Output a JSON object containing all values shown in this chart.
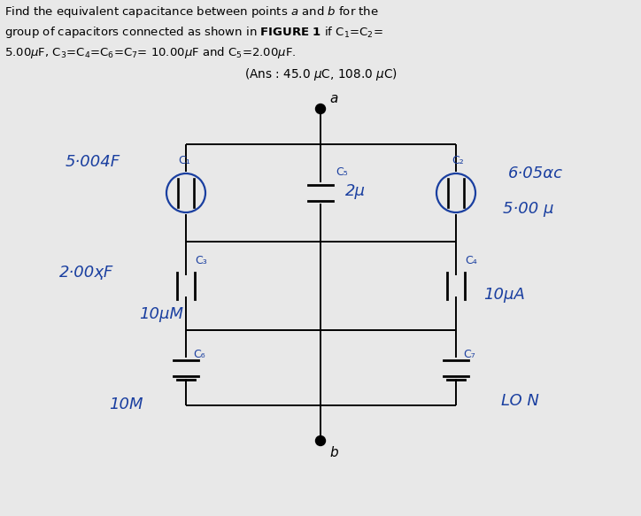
{
  "background_color": "#e8e8e8",
  "wire_color": "#000000",
  "cap_color": "#000000",
  "label_color": "#1a3fa0",
  "node_color": "#000000",
  "title_color": "#000000",
  "node_a": "a",
  "node_b": "b",
  "C1_label": "C₁",
  "C2_label": "C₂",
  "C3_label": "C₃",
  "C4_label": "C₄",
  "C5_label": "C₅",
  "C6_label": "C₆",
  "C7_label": "C₇",
  "hw_5004F": "5·00ҳF",
  "hw_605ac": "6·05αc",
  "hw_500u": "5·00 μ",
  "hw_2u": "2μ",
  "hw_10uM_left": "10μM",
  "hw_10uA_right": "10μA",
  "hw_200HF": "2·00ҳF",
  "hw_10M_left": "10M",
  "hw_LO_right": "LO N",
  "ans_line1": "(Ans : 45.0 μC, 108.0 μC)"
}
